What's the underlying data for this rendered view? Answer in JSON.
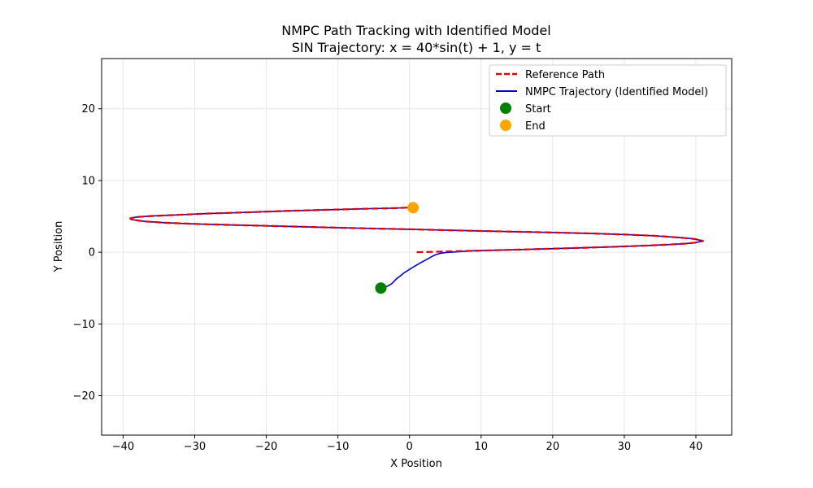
{
  "chart_data": {
    "type": "line",
    "title": "NMPC Path Tracking with Identified Model",
    "subtitle": "SIN Trajectory: x = 40*sin(t) + 1, y = t",
    "xlabel": "X Position",
    "ylabel": "Y Position",
    "xlim": [
      -43,
      45
    ],
    "ylim": [
      -25.5,
      27
    ],
    "xticks": [
      -40,
      -30,
      -20,
      -10,
      0,
      10,
      20,
      30,
      40
    ],
    "yticks": [
      -20,
      -10,
      0,
      10,
      20
    ],
    "xtick_labels": [
      "−40",
      "−30",
      "−20",
      "−10",
      "0",
      "10",
      "20",
      "30",
      "40"
    ],
    "ytick_labels": [
      "−20",
      "−10",
      "0",
      "10",
      "20"
    ],
    "grid": true,
    "legend_position": "top-right",
    "series": [
      {
        "name": "Reference Path",
        "style": "dashed",
        "color": "#e00000",
        "x": [
          1,
          4.99,
          8.95,
          12.82,
          16.58,
          20.18,
          23.59,
          26.78,
          29.72,
          32.39,
          34.77,
          36.84,
          38.58,
          39.98,
          41,
          39.8,
          38.2,
          36.3,
          34.0,
          30.5,
          26.0,
          20.0,
          13.0,
          6.0,
          0.0,
          -5.0,
          -10.0,
          -15.0,
          -20.0,
          -25.0,
          -30.0,
          -34.0,
          -37.0,
          -38.8,
          -39.0,
          -38.2,
          -36.0,
          -32.5,
          -28.0,
          -23.0,
          -17.5,
          -12.0,
          -6.5,
          -2.0,
          0.5
        ],
        "y": [
          0,
          0.1,
          0.2,
          0.3,
          0.4,
          0.5,
          0.6,
          0.7,
          0.8,
          0.9,
          1.0,
          1.1,
          1.2,
          1.35,
          1.57,
          1.85,
          2.0,
          2.15,
          2.3,
          2.45,
          2.6,
          2.75,
          2.9,
          3.05,
          3.2,
          3.3,
          3.42,
          3.55,
          3.68,
          3.8,
          3.95,
          4.1,
          4.3,
          4.55,
          4.72,
          4.9,
          5.05,
          5.2,
          5.4,
          5.55,
          5.75,
          5.9,
          6.05,
          6.15,
          6.25
        ]
      },
      {
        "name": "NMPC Trajectory (Identified Model)",
        "style": "solid",
        "color": "#0000dd",
        "x": [
          -4,
          -3.2,
          -2.5,
          -1.8,
          -0.8,
          0.3,
          1.5,
          2.6,
          3.3,
          3.8,
          4.3,
          5.0,
          6.5,
          9.0,
          12.8,
          16.58,
          20.18,
          23.59,
          26.78,
          29.72,
          32.39,
          34.77,
          36.84,
          38.58,
          39.98,
          41,
          39.8,
          38.2,
          36.3,
          34.0,
          30.5,
          26.0,
          20.0,
          13.0,
          6.0,
          0.0,
          -5.0,
          -10.0,
          -15.0,
          -20.0,
          -25.0,
          -30.0,
          -34.0,
          -37.0,
          -38.8,
          -39.0,
          -38.2,
          -36.0,
          -32.5,
          -28.0,
          -23.0,
          -17.5,
          -12.0,
          -6.5,
          -2.0,
          0.5
        ],
        "y": [
          -5,
          -4.8,
          -4.4,
          -3.7,
          -2.9,
          -2.2,
          -1.5,
          -0.9,
          -0.5,
          -0.3,
          -0.15,
          -0.05,
          0.05,
          0.2,
          0.3,
          0.4,
          0.5,
          0.6,
          0.7,
          0.8,
          0.9,
          1.0,
          1.1,
          1.2,
          1.35,
          1.57,
          1.85,
          2.0,
          2.15,
          2.3,
          2.45,
          2.6,
          2.75,
          2.9,
          3.05,
          3.2,
          3.3,
          3.42,
          3.55,
          3.68,
          3.8,
          3.95,
          4.1,
          4.3,
          4.55,
          4.72,
          4.9,
          5.05,
          5.2,
          5.4,
          5.55,
          5.75,
          5.9,
          6.05,
          6.15,
          6.25
        ]
      }
    ],
    "markers": [
      {
        "name": "Start",
        "x": -4,
        "y": -5,
        "color": "#008000"
      },
      {
        "name": "End",
        "x": 0.5,
        "y": 6.2,
        "color": "#ffa500"
      }
    ]
  }
}
